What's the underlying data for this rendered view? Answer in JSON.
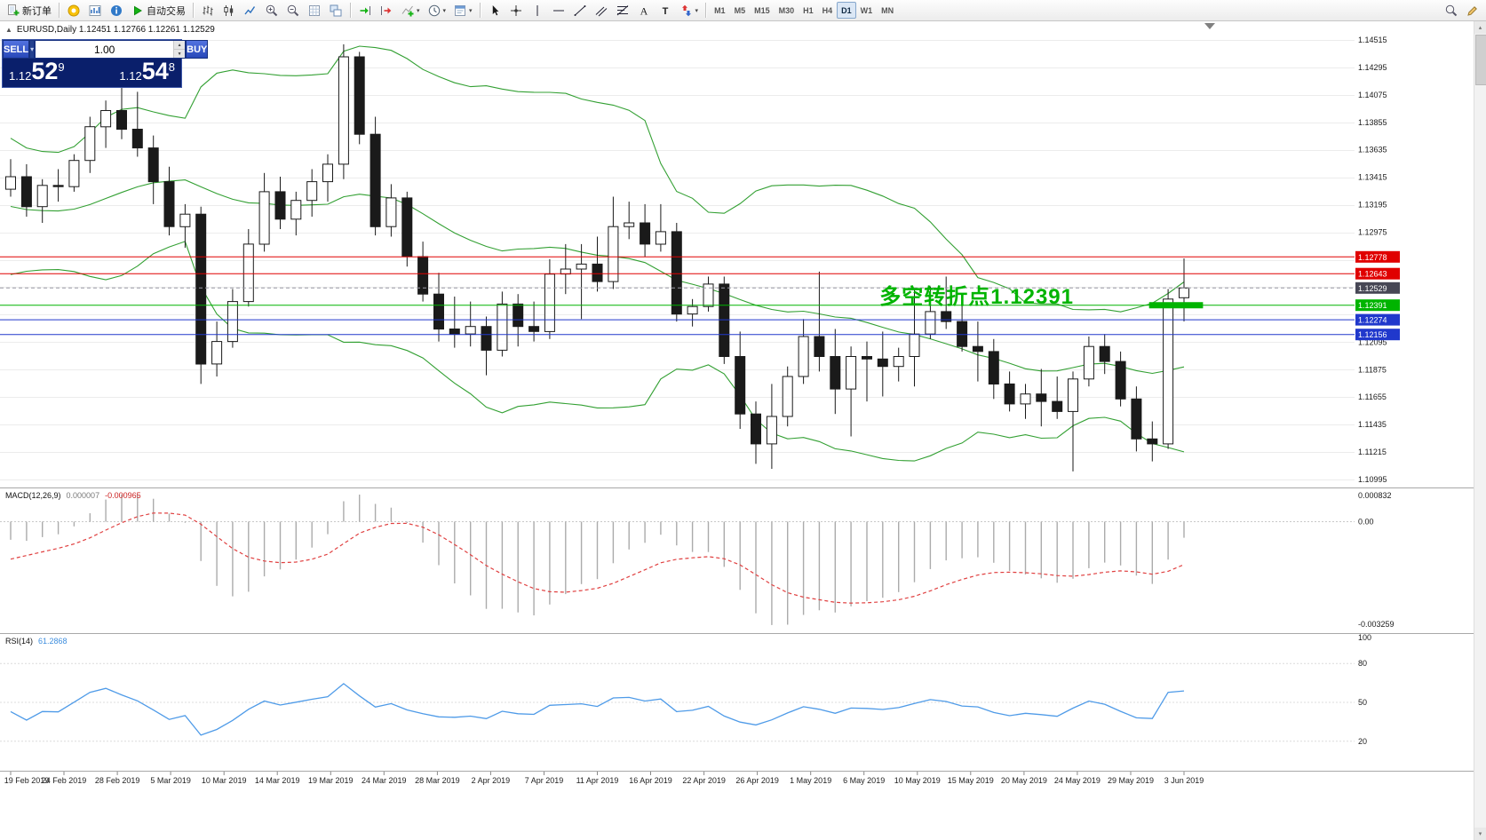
{
  "toolbar": {
    "groups": [
      {
        "items": [
          {
            "name": "new-order-button",
            "icon": "new-order",
            "label": "新订单"
          }
        ]
      },
      {
        "items": [
          {
            "name": "community-button",
            "icon": "community"
          },
          {
            "name": "market-watch-button",
            "icon": "market-watch"
          },
          {
            "name": "data-window-button",
            "icon": "info"
          },
          {
            "name": "auto-trading-button",
            "icon": "autotrading",
            "label": "自动交易"
          }
        ]
      },
      {
        "items": [
          {
            "name": "bar-chart-button",
            "icon": "bars"
          },
          {
            "name": "candlestick-chart-button",
            "icon": "candles"
          },
          {
            "name": "line-chart-button",
            "icon": "linechart"
          },
          {
            "name": "zoom-in-button",
            "icon": "zoom-in"
          },
          {
            "name": "zoom-out-button",
            "icon": "zoom-out"
          },
          {
            "name": "grid-button",
            "icon": "grid"
          },
          {
            "name": "tile-windows-button",
            "icon": "tile"
          }
        ]
      },
      {
        "items": [
          {
            "name": "auto-scroll-button",
            "icon": "autoscroll"
          },
          {
            "name": "chart-shift-button",
            "icon": "shift"
          },
          {
            "name": "indicators-button",
            "icon": "indicators",
            "dropdown": true
          },
          {
            "name": "periods-button",
            "icon": "periods",
            "dropdown": true
          },
          {
            "name": "templates-button",
            "icon": "templates",
            "dropdown": true
          }
        ]
      },
      {
        "items": [
          {
            "name": "cursor-button",
            "icon": "cursor"
          },
          {
            "name": "crosshair-button",
            "icon": "crosshair"
          },
          {
            "name": "vertical-line-button",
            "icon": "vline"
          },
          {
            "name": "horizontal-line-button",
            "icon": "hline"
          },
          {
            "name": "trendline-button",
            "icon": "trendline"
          },
          {
            "name": "channel-button",
            "icon": "channel"
          },
          {
            "name": "fibonacci-button",
            "icon": "fibo"
          },
          {
            "name": "text-button",
            "icon": "text"
          },
          {
            "name": "label-button",
            "icon": "label"
          },
          {
            "name": "arrows-button",
            "icon": "arrows",
            "dropdown": true
          }
        ]
      },
      {
        "items": [
          {
            "name": "tf-m1-button",
            "tf": "M1"
          },
          {
            "name": "tf-m5-button",
            "tf": "M5"
          },
          {
            "name": "tf-m15-button",
            "tf": "M15"
          },
          {
            "name": "tf-m30-button",
            "tf": "M30"
          },
          {
            "name": "tf-h1-button",
            "tf": "H1"
          },
          {
            "name": "tf-h4-button",
            "tf": "H4"
          },
          {
            "name": "tf-d1-button",
            "tf": "D1",
            "active": true
          },
          {
            "name": "tf-w1-button",
            "tf": "W1"
          },
          {
            "name": "tf-mn-button",
            "tf": "MN"
          }
        ]
      }
    ],
    "right_items": [
      {
        "name": "search-button",
        "icon": "search"
      },
      {
        "name": "edit-button",
        "icon": "edit"
      }
    ]
  },
  "chart": {
    "symbol_header": "EURUSD,Daily 1.12451 1.12766 1.12261 1.12529"
  },
  "trade": {
    "sell_label": "SELL",
    "buy_label": "BUY",
    "volume": "1.00",
    "sell_price": {
      "prefix": "1.12",
      "big": "52",
      "sup": "9"
    },
    "buy_price": {
      "prefix": "1.12",
      "big": "54",
      "sup": "8"
    }
  },
  "indicators": {
    "macd": {
      "label": "MACD(12,26,9)",
      "value_main": "0.000007",
      "value_signal": "-0.000965"
    },
    "rsi": {
      "label": "RSI(14)",
      "value": "61.2868"
    }
  },
  "annotation": {
    "text": "多空转折点1.12391",
    "price": 1.12391,
    "bar": 54.8
  },
  "chart_data": {
    "type": "candlestick",
    "symbol": "EURUSD",
    "period": "Daily",
    "current_ohlc": {
      "open": "1.12451",
      "high": "1.12766",
      "low": "1.12261",
      "close": "1.12529"
    },
    "price_scale": {
      "max": 1.14515,
      "min": 1.10995,
      "step": 0.0022,
      "labels": [
        "1.14515",
        "1.14295",
        "1.14075",
        "1.13855",
        "1.13635",
        "1.13415",
        "1.13195",
        "1.12975",
        "1.12095",
        "1.11875",
        "1.11655",
        "1.11435",
        "1.11215",
        "1.10995"
      ]
    },
    "x_axis_labels": [
      "19 Feb 2019",
      "24 Feb 2019",
      "28 Feb 2019",
      "5 Mar 2019",
      "10 Mar 2019",
      "14 Mar 2019",
      "19 Mar 2019",
      "24 Mar 2019",
      "28 Mar 2019",
      "2 Apr 2019",
      "7 Apr 2019",
      "11 Apr 2019",
      "16 Apr 2019",
      "22 Apr 2019",
      "26 Apr 2019",
      "1 May 2019",
      "6 May 2019",
      "10 May 2019",
      "15 May 2019",
      "20 May 2019",
      "24 May 2019",
      "29 May 2019",
      "3 Jun 2019"
    ],
    "history_closes": [
      1.1378,
      1.1369,
      1.1352,
      1.1339,
      1.1325,
      1.131,
      1.1296,
      1.1284,
      1.1276,
      1.1272,
      1.1278,
      1.129,
      1.1304,
      1.1318,
      1.1332,
      1.1345,
      1.134,
      1.1334,
      1.1328,
      1.133
    ],
    "candles": [
      [
        1.1332,
        1.1356,
        1.1326,
        1.1342
      ],
      [
        1.1342,
        1.1352,
        1.131,
        1.1318
      ],
      [
        1.1318,
        1.134,
        1.1305,
        1.1335
      ],
      [
        1.1335,
        1.1348,
        1.1322,
        1.1334
      ],
      [
        1.1334,
        1.136,
        1.133,
        1.1355
      ],
      [
        1.1355,
        1.139,
        1.1345,
        1.1382
      ],
      [
        1.1382,
        1.1403,
        1.1365,
        1.1395
      ],
      [
        1.1395,
        1.142,
        1.1372,
        1.138
      ],
      [
        1.138,
        1.141,
        1.1358,
        1.1365
      ],
      [
        1.1365,
        1.1375,
        1.132,
        1.1338
      ],
      [
        1.1338,
        1.135,
        1.1295,
        1.1302
      ],
      [
        1.1302,
        1.132,
        1.1285,
        1.1312
      ],
      [
        1.1312,
        1.1318,
        1.1176,
        1.1192
      ],
      [
        1.1192,
        1.1226,
        1.1182,
        1.121
      ],
      [
        1.121,
        1.1252,
        1.1205,
        1.1242
      ],
      [
        1.1242,
        1.13,
        1.1238,
        1.1288
      ],
      [
        1.1288,
        1.1345,
        1.1282,
        1.133
      ],
      [
        1.133,
        1.1342,
        1.13,
        1.1308
      ],
      [
        1.1308,
        1.133,
        1.1295,
        1.1323
      ],
      [
        1.1323,
        1.1348,
        1.131,
        1.1338
      ],
      [
        1.1338,
        1.136,
        1.1322,
        1.1352
      ],
      [
        1.1352,
        1.1448,
        1.134,
        1.1438
      ],
      [
        1.1438,
        1.1442,
        1.1368,
        1.1376
      ],
      [
        1.1376,
        1.139,
        1.1295,
        1.1302
      ],
      [
        1.1302,
        1.1336,
        1.1294,
        1.1325
      ],
      [
        1.1325,
        1.133,
        1.127,
        1.1278
      ],
      [
        1.1278,
        1.129,
        1.1242,
        1.1248
      ],
      [
        1.1248,
        1.1265,
        1.121,
        1.122
      ],
      [
        1.122,
        1.1246,
        1.1205,
        1.1216
      ],
      [
        1.1216,
        1.1242,
        1.1206,
        1.1222
      ],
      [
        1.1222,
        1.123,
        1.1183,
        1.1203
      ],
      [
        1.1203,
        1.125,
        1.1198,
        1.124
      ],
      [
        1.124,
        1.1248,
        1.1206,
        1.1222
      ],
      [
        1.1222,
        1.1242,
        1.121,
        1.1218
      ],
      [
        1.1218,
        1.1276,
        1.1212,
        1.1264
      ],
      [
        1.1264,
        1.1288,
        1.1248,
        1.1268
      ],
      [
        1.1268,
        1.1288,
        1.1228,
        1.1272
      ],
      [
        1.1272,
        1.1294,
        1.125,
        1.1258
      ],
      [
        1.1258,
        1.1326,
        1.1252,
        1.1302
      ],
      [
        1.1302,
        1.1322,
        1.1292,
        1.1305
      ],
      [
        1.1305,
        1.132,
        1.1278,
        1.1288
      ],
      [
        1.1288,
        1.132,
        1.1282,
        1.1298
      ],
      [
        1.1298,
        1.1305,
        1.1226,
        1.1232
      ],
      [
        1.1232,
        1.1244,
        1.1222,
        1.1238
      ],
      [
        1.1238,
        1.1262,
        1.1234,
        1.1256
      ],
      [
        1.1256,
        1.1262,
        1.1192,
        1.1198
      ],
      [
        1.1198,
        1.1218,
        1.114,
        1.1152
      ],
      [
        1.1152,
        1.1162,
        1.1112,
        1.1128
      ],
      [
        1.1128,
        1.1176,
        1.1108,
        1.115
      ],
      [
        1.115,
        1.119,
        1.1142,
        1.1182
      ],
      [
        1.1182,
        1.1228,
        1.1176,
        1.1214
      ],
      [
        1.1214,
        1.1266,
        1.1186,
        1.1198
      ],
      [
        1.1198,
        1.122,
        1.1152,
        1.1172
      ],
      [
        1.1172,
        1.1206,
        1.1134,
        1.1198
      ],
      [
        1.1198,
        1.121,
        1.1162,
        1.1196
      ],
      [
        1.1196,
        1.1218,
        1.1166,
        1.119
      ],
      [
        1.119,
        1.1205,
        1.1178,
        1.1198
      ],
      [
        1.1198,
        1.1252,
        1.1174,
        1.1216
      ],
      [
        1.1216,
        1.1254,
        1.1212,
        1.1234
      ],
      [
        1.1234,
        1.1262,
        1.122,
        1.1226
      ],
      [
        1.1226,
        1.1244,
        1.1202,
        1.1206
      ],
      [
        1.1206,
        1.1226,
        1.1178,
        1.1202
      ],
      [
        1.1202,
        1.1212,
        1.1164,
        1.1176
      ],
      [
        1.1176,
        1.1186,
        1.1154,
        1.116
      ],
      [
        1.116,
        1.1176,
        1.1148,
        1.1168
      ],
      [
        1.1168,
        1.1188,
        1.1142,
        1.1162
      ],
      [
        1.1162,
        1.1182,
        1.1148,
        1.1154
      ],
      [
        1.1154,
        1.1186,
        1.1106,
        1.118
      ],
      [
        1.118,
        1.1214,
        1.1174,
        1.1206
      ],
      [
        1.1206,
        1.1216,
        1.1184,
        1.1194
      ],
      [
        1.1194,
        1.1202,
        1.1158,
        1.1164
      ],
      [
        1.1164,
        1.1174,
        1.1122,
        1.1132
      ],
      [
        1.1132,
        1.1146,
        1.1114,
        1.1128
      ],
      [
        1.1128,
        1.1252,
        1.1124,
        1.1244
      ],
      [
        1.12451,
        1.12766,
        1.12261,
        1.12529
      ]
    ],
    "bollinger": {
      "period": 20,
      "deviation": 2
    },
    "macd": {
      "fast": 12,
      "slow": 26,
      "signal": 9,
      "scale": {
        "max": 0.000832,
        "min": -0.003259,
        "labels": [
          {
            "text": "0.000832",
            "value": 0.000832
          },
          {
            "text": "0.00",
            "value": 0
          },
          {
            "text": "-0.003259",
            "value": -0.003259
          }
        ]
      }
    },
    "rsi": {
      "period": 14,
      "scale_labels": [
        {
          "text": "100",
          "value": 100
        },
        {
          "text": "80",
          "value": 80
        },
        {
          "text": "50",
          "value": 50
        },
        {
          "text": "20",
          "value": 20
        }
      ]
    },
    "levels": [
      {
        "label": "1.12778",
        "price": 1.12778,
        "color": "#e00000",
        "style": "solid"
      },
      {
        "label": "1.12643",
        "price": 1.12643,
        "color": "#e00000",
        "style": "solid"
      },
      {
        "label": "1.12529",
        "price": 1.12529,
        "color": "#474755",
        "style": "dash",
        "current": true
      },
      {
        "label": "1.12391",
        "price": 1.12391,
        "color": "#00b400",
        "style": "solid"
      },
      {
        "label": "1.12274",
        "price": 1.12274,
        "color": "#2038cc",
        "style": "solid"
      },
      {
        "label": "1.12156",
        "price": 1.12156,
        "color": "#2038cc",
        "style": "solid"
      }
    ],
    "pivot_segment": {
      "price": 1.12391,
      "from_bar": 71.8,
      "to_bar": 75.2,
      "width": 7
    },
    "colors": {
      "bull": "#ffffff",
      "bear": "#1a1a1a",
      "outline": "#1a1a1a",
      "bollinger": "#33a033",
      "macd_histogram": "#ababab",
      "macd_signal": "#e04040",
      "rsi_line": "#4f9be8",
      "level_red": "#e00000",
      "level_blue": "#2038cc",
      "level_green": "#00b400",
      "current_price_tag": "#474755",
      "grid": "#ececec"
    }
  }
}
